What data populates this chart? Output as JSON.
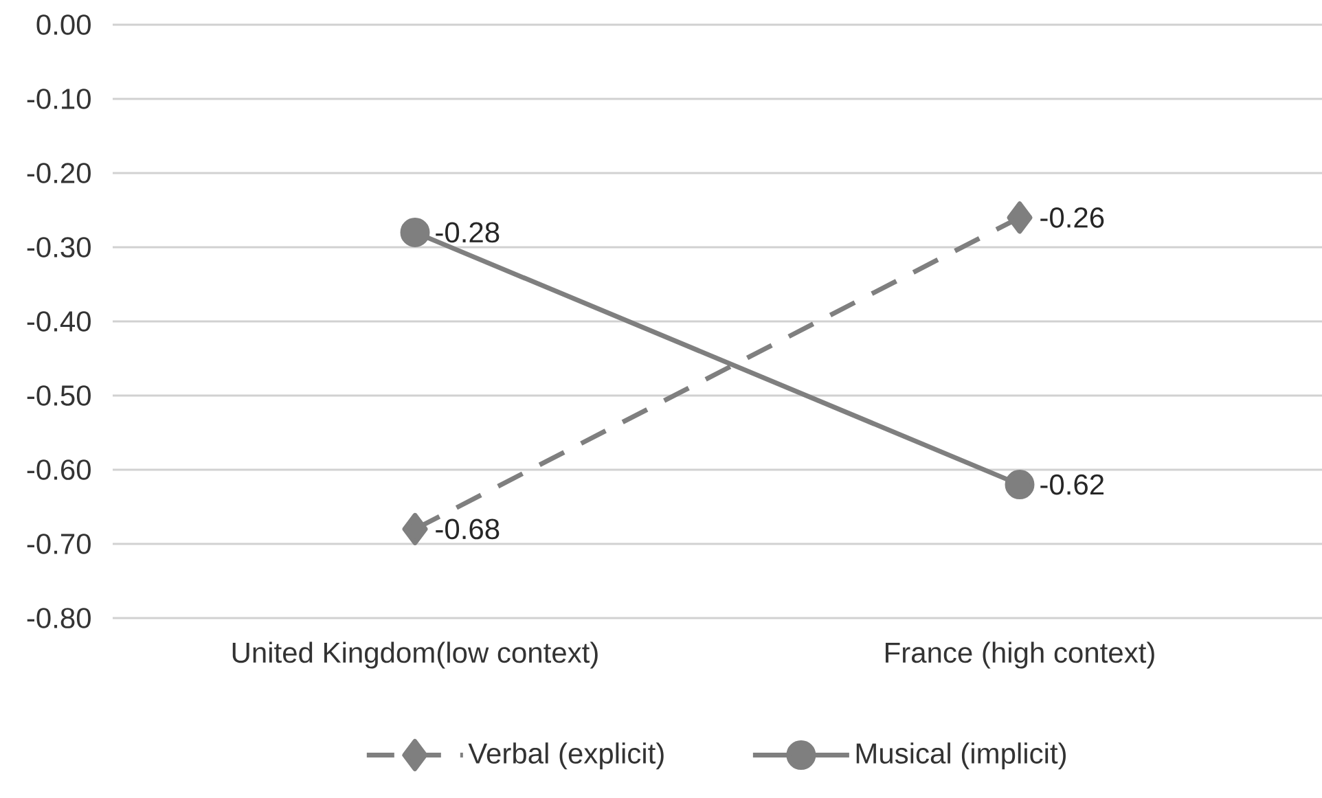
{
  "chart_data": {
    "type": "line",
    "categories": [
      "United Kingdom(low context)",
      "France (high context)"
    ],
    "series": [
      {
        "name": "Verbal (explicit)",
        "color": "#7f7f7f",
        "values": [
          -0.68,
          -0.26
        ],
        "marker": "diamond",
        "line_style": "dashed"
      },
      {
        "name": "Musical (implicit)",
        "color": "#7f7f7f",
        "values": [
          -0.28,
          -0.62
        ],
        "marker": "circle",
        "line_style": "solid"
      }
    ],
    "ylim": [
      -0.8,
      0
    ],
    "yticks": [
      {
        "value": 0,
        "label": "0.00"
      },
      {
        "value": -0.1,
        "label": "-0.10"
      },
      {
        "value": -0.2,
        "label": "-0.20"
      },
      {
        "value": -0.3,
        "label": "-0.30"
      },
      {
        "value": -0.4,
        "label": "-0.40"
      },
      {
        "value": -0.5,
        "label": "-0.50"
      },
      {
        "value": -0.6,
        "label": "-0.60"
      },
      {
        "value": -0.7,
        "label": "-0.70"
      },
      {
        "value": -0.8,
        "label": "-0.80"
      }
    ],
    "grid": "y",
    "legend": "bottom",
    "data_labels": true
  }
}
